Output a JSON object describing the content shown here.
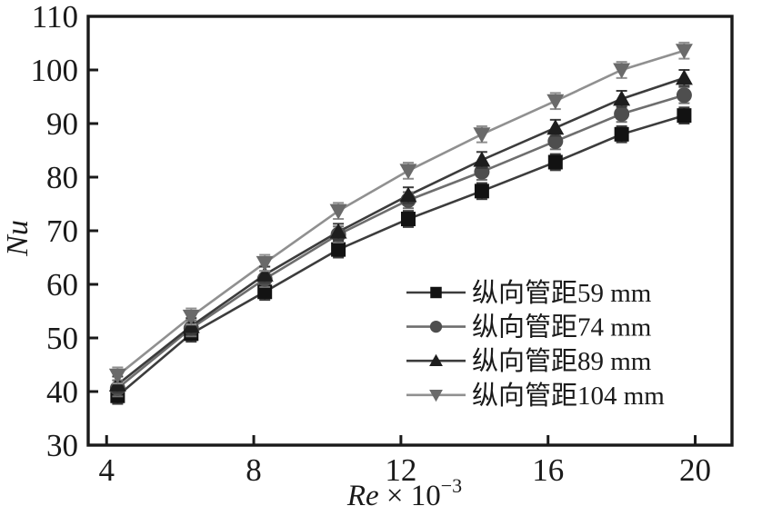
{
  "chart_data": {
    "type": "line",
    "title": "",
    "xlabel": {
      "pre": "Re",
      "post": " × 10",
      "sup": "−3"
    },
    "ylabel": "Nu",
    "xlim": [
      3.5,
      21
    ],
    "ylim": [
      30,
      110
    ],
    "x_ticks": [
      4,
      8,
      12,
      16,
      20
    ],
    "y_ticks": [
      30,
      40,
      50,
      60,
      70,
      80,
      90,
      100,
      110
    ],
    "grid": false,
    "legend_position": "lower-right",
    "error_bar": 1.5,
    "x": [
      4.3,
      6.3,
      8.3,
      10.3,
      12.2,
      14.2,
      16.2,
      18.0,
      19.7
    ],
    "series": [
      {
        "name": "纵向管距59 mm",
        "marker": "square",
        "marker_color": "#121212",
        "line_color": "#3c3c3c",
        "values": [
          39.2,
          50.8,
          58.6,
          66.5,
          72.2,
          77.4,
          82.8,
          88.0,
          91.5
        ]
      },
      {
        "name": "纵向管距74 mm",
        "marker": "circle",
        "marker_color": "#4e4e4e",
        "line_color": "#6e6e6e",
        "values": [
          40.6,
          51.8,
          61.0,
          69.3,
          75.7,
          81.0,
          86.7,
          91.8,
          95.3
        ]
      },
      {
        "name": "纵向管距89 mm",
        "marker": "triangle-up",
        "marker_color": "#1e1e1e",
        "line_color": "#3c3c3c",
        "values": [
          41.3,
          52.2,
          61.8,
          69.8,
          76.6,
          83.2,
          89.2,
          94.6,
          98.5
        ]
      },
      {
        "name": "纵向管距104 mm",
        "marker": "triangle-down",
        "marker_color": "#6a6a6a",
        "line_color": "#909090",
        "values": [
          43.0,
          54.0,
          64.0,
          73.7,
          81.2,
          88.0,
          94.2,
          100.0,
          103.6
        ]
      }
    ]
  }
}
